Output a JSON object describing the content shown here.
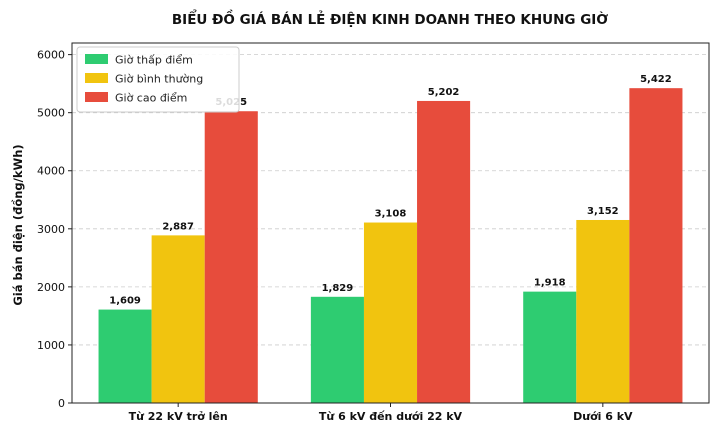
{
  "chart_data": {
    "type": "bar",
    "title": "BIỂU ĐỒ GIÁ BÁN LẺ ĐIỆN KINH DOANH THEO KHUNG GIỜ",
    "xlabel": "",
    "ylabel": "Giá bán điện (đồng/kWh)",
    "categories": [
      "Từ 22 kV trở lên",
      "Từ 6 kV đến dưới 22 kV",
      "Dưới 6 kV"
    ],
    "series": [
      {
        "name": "Giờ thấp điểm",
        "color": "#2ecc71",
        "values": [
          1609,
          1829,
          1918
        ],
        "labels": [
          "1,609",
          "1,829",
          "1,918"
        ]
      },
      {
        "name": "Giờ bình thường",
        "color": "#f1c40f",
        "values": [
          2887,
          3108,
          3152
        ],
        "labels": [
          "2,887",
          "3,108",
          "3,152"
        ]
      },
      {
        "name": "Giờ cao điểm",
        "color": "#e74c3c",
        "values": [
          5025,
          5202,
          5422
        ],
        "labels": [
          "5,025",
          "5,202",
          "5,422"
        ]
      }
    ],
    "ylim": [
      0,
      6200
    ],
    "yticks": [
      0,
      1000,
      2000,
      3000,
      4000,
      5000,
      6000
    ],
    "ytick_labels": [
      "0",
      "1000",
      "2000",
      "3000",
      "4000",
      "5000",
      "6000"
    ],
    "grid": "y-dashed",
    "legend": "top-left"
  }
}
